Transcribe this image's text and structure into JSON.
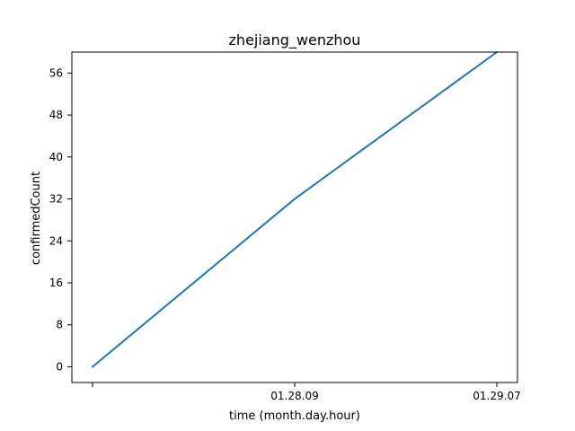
{
  "chart_data": {
    "type": "line",
    "title": "zhejiang_wenzhou",
    "xlabel": "time (month.day.hour)",
    "ylabel": "confirmedCount",
    "x_tick_labels": [
      "",
      "01.28.09",
      "01.29.07"
    ],
    "y_ticks": [
      0,
      8,
      16,
      24,
      32,
      40,
      48,
      56
    ],
    "ylim": [
      -3,
      60
    ],
    "grid": false,
    "legend": "none",
    "series": [
      {
        "x_tick_positions": [
          0,
          1,
          2
        ],
        "values": [
          0,
          32,
          60
        ],
        "color": "#1f77b4"
      }
    ]
  }
}
